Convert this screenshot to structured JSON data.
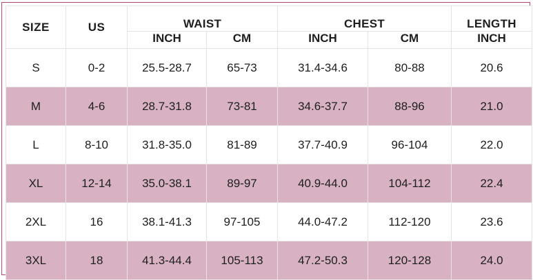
{
  "headers": {
    "size": "SIZE",
    "us": "US",
    "waist": "WAIST",
    "chest": "CHEST",
    "length": "LENGTH",
    "inch": "INCH",
    "cm": "CM"
  },
  "rows": [
    {
      "size": "S",
      "us": "0-2",
      "waist_inch": "25.5-28.7",
      "waist_cm": "65-73",
      "chest_inch": "31.4-34.6",
      "chest_cm": "80-88",
      "length_inch": "20.6"
    },
    {
      "size": "M",
      "us": "4-6",
      "waist_inch": "28.7-31.8",
      "waist_cm": "73-81",
      "chest_inch": "34.6-37.7",
      "chest_cm": "88-96",
      "length_inch": "21.0"
    },
    {
      "size": "L",
      "us": "8-10",
      "waist_inch": "31.8-35.0",
      "waist_cm": "81-89",
      "chest_inch": "37.7-40.9",
      "chest_cm": "96-104",
      "length_inch": "22.0"
    },
    {
      "size": "XL",
      "us": "12-14",
      "waist_inch": "35.0-38.1",
      "waist_cm": "89-97",
      "chest_inch": "40.9-44.0",
      "chest_cm": "104-112",
      "length_inch": "22.4"
    },
    {
      "size": "2XL",
      "us": "16",
      "waist_inch": "38.1-41.3",
      "waist_cm": "97-105",
      "chest_inch": "44.0-47.2",
      "chest_cm": "112-120",
      "length_inch": "23.6"
    },
    {
      "size": "3XL",
      "us": "18",
      "waist_inch": "41.3-44.4",
      "waist_cm": "105-113",
      "chest_inch": "47.2-50.3",
      "chest_cm": "120-128",
      "length_inch": "24.0"
    }
  ],
  "colors": {
    "stripe": "#d8b2c2",
    "border": "#b9476d"
  }
}
